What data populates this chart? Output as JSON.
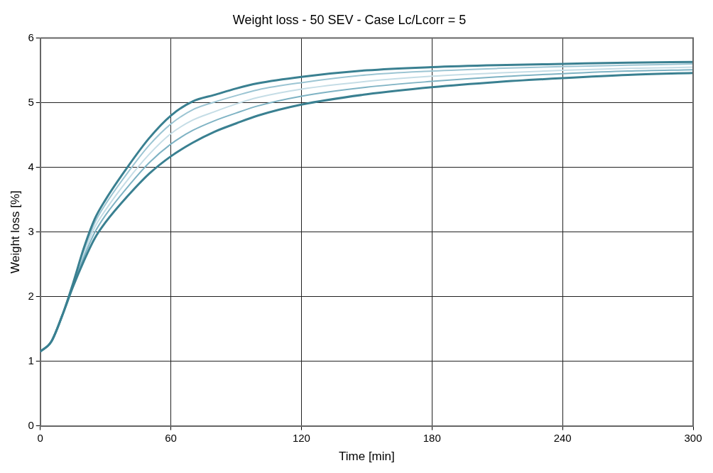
{
  "chart_data": {
    "type": "line",
    "title": "Weight loss - 50 SEV - Case Lc/Lcorr = 5",
    "xlabel": "Time [min]",
    "ylabel": "Weight loss [%]",
    "x": [
      0,
      5,
      10,
      15,
      20,
      25,
      30,
      40,
      50,
      60,
      70,
      80,
      90,
      100,
      120,
      150,
      180,
      210,
      240,
      270,
      300
    ],
    "series": [
      {
        "color": "#3a8091",
        "values": [
          1.15,
          1.3,
          1.7,
          2.2,
          2.75,
          3.2,
          3.5,
          4.0,
          4.45,
          4.8,
          5.02,
          5.12,
          5.22,
          5.3,
          5.4,
          5.5,
          5.55,
          5.58,
          5.6,
          5.62,
          5.63
        ]
      },
      {
        "color": "#3a8091",
        "values": [
          1.15,
          1.3,
          1.7,
          2.15,
          2.55,
          2.9,
          3.15,
          3.55,
          3.9,
          4.17,
          4.38,
          4.55,
          4.68,
          4.8,
          4.97,
          5.13,
          5.24,
          5.32,
          5.38,
          5.43,
          5.46
        ]
      },
      {
        "color": "#7fb3c4",
        "values": [
          1.15,
          1.3,
          1.7,
          2.17,
          2.61,
          2.99,
          3.26,
          3.69,
          4.07,
          4.36,
          4.57,
          4.72,
          4.84,
          4.95,
          5.1,
          5.24,
          5.33,
          5.4,
          5.45,
          5.49,
          5.51
        ]
      },
      {
        "color": "#c5dde6",
        "values": [
          1.15,
          1.3,
          1.7,
          2.18,
          2.66,
          3.07,
          3.34,
          3.8,
          4.2,
          4.52,
          4.73,
          4.86,
          4.98,
          5.08,
          5.21,
          5.33,
          5.41,
          5.46,
          5.5,
          5.53,
          5.55
        ]
      },
      {
        "color": "#9cc5d3",
        "values": [
          1.15,
          1.3,
          1.7,
          2.19,
          2.71,
          3.14,
          3.43,
          3.91,
          4.34,
          4.67,
          4.89,
          5.01,
          5.11,
          5.2,
          5.31,
          5.43,
          5.49,
          5.53,
          5.56,
          5.58,
          5.6
        ]
      }
    ],
    "xlim": [
      0,
      300
    ],
    "xticks": [
      0,
      60,
      120,
      180,
      240,
      300
    ],
    "ylim": [
      0,
      6
    ],
    "yticks": [
      0,
      1,
      2,
      3,
      4,
      5,
      6
    ],
    "grid": true,
    "legend": false,
    "marker": "none",
    "line_style": "solid"
  }
}
